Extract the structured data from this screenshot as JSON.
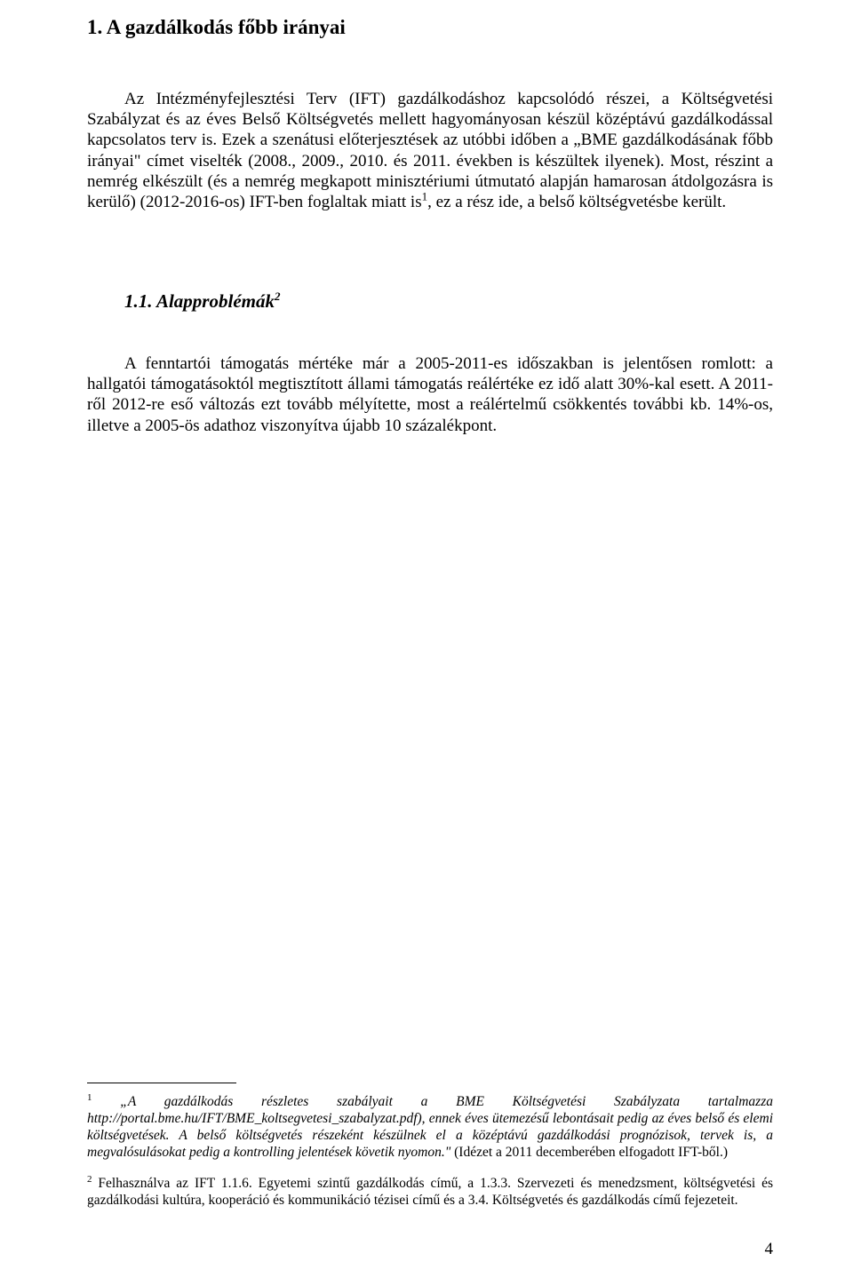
{
  "heading1": "1. A gazdálkodás főbb irányai",
  "para1_a": "Az Intézményfejlesztési Terv (IFT) gazdálkodáshoz kapcsolódó részei, a Költségvetési Szabályzat és az éves Belső Költségvetés mellett hagyományosan készül középtávú gazdálkodással kapcsolatos terv is. Ezek a szenátusi előterjesztések az utóbbi időben a „BME gazdálkodásának főbb irányai\" címet viselték (2008., 2009., 2010. és 2011. években is készültek ilyenek). Most, részint a nemrég elkészült (és a nemrég megkapott minisztériumi útmutató alapján hamarosan átdolgozásra is kerülő) (2012-2016-os) IFT-ben foglaltak miatt is",
  "para1_sup": "1",
  "para1_b": ", ez a rész ide, a belső költségvetésbe került.",
  "heading2_a": "1.1. Alapproblémák",
  "heading2_sup": "2",
  "para2": "A fenntartói támogatás mértéke már a 2005-2011-es időszakban is jelentősen romlott: a hallgatói támogatásoktól megtisztított állami támogatás reálértéke ez idő alatt 30%-kal esett. A 2011-ről 2012-re eső változás ezt tovább mélyítette, most a reálértelmű csökkentés további kb. 14%-os, illetve a 2005-ös adathoz viszonyítva újabb 10 százalékpont.",
  "footnote1_sup": "1",
  "footnote1_italic_a": "„A gazdálkodás részletes szabályait a BME Költségvetési Szabályzata tartalmazza http://portal.bme.hu/IFT/BME_koltsegvetesi_szabalyzat.pdf), ennek éves ütemezésű lebontásait pedig az éves belső és elemi költségvetések. A belső költségvetés részeként készülnek el a középtávú gazdálkodási prognózisok, tervek is, a megvalósulásokat pedig a kontrolling jelentések követik nyomon.\"",
  "footnote1_tail": " (Idézet a 2011 decemberében elfogadott IFT-ből.)",
  "footnote2_sup": "2",
  "footnote2": " Felhasználva az IFT 1.1.6. Egyetemi szintű gazdálkodás című, a 1.3.3. Szervezeti és menedzsment, költségvetési és gazdálkodási kultúra, kooperáció és kommunikáció tézisei című és a 3.4. Költségvetés és gazdálkodás című fejezeteit.",
  "page_number": "4"
}
